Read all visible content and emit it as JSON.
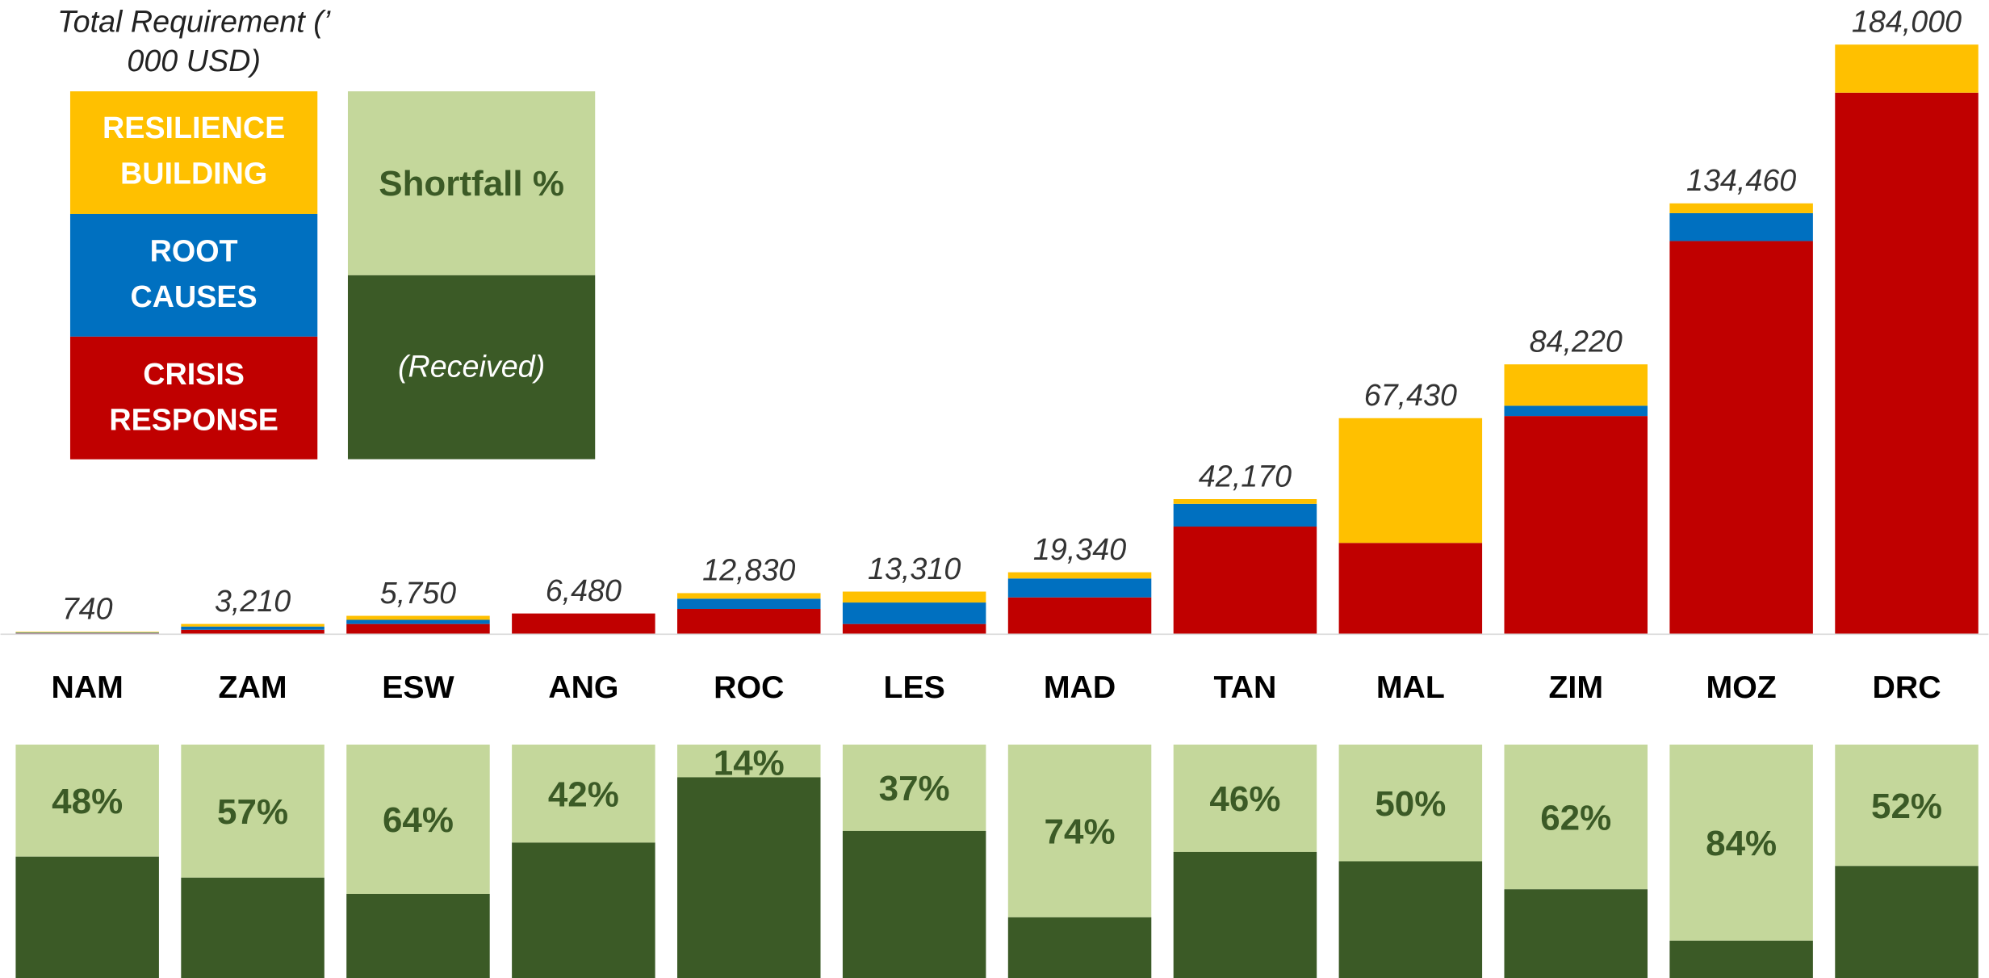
{
  "chart_data": [
    {
      "type": "stacked-bar",
      "title": "Total Requirement (’ 000 USD)",
      "categories": [
        "NAM",
        "ZAM",
        "ESW",
        "ANG",
        "ROC",
        "LES",
        "MAD",
        "TAN",
        "MAL",
        "ZIM",
        "MOZ",
        "DRC"
      ],
      "series": [
        {
          "name": "CRISIS RESPONSE",
          "color": "#c00000",
          "values": [
            300,
            1400,
            3200,
            6480,
            7900,
            3200,
            11500,
            33600,
            28500,
            68100,
            122700,
            169000
          ]
        },
        {
          "name": "ROOT CAUSES",
          "color": "#0070c0",
          "values": [
            200,
            1000,
            1300,
            0,
            3200,
            6700,
            5900,
            7100,
            0,
            3200,
            8700,
            0
          ]
        },
        {
          "name": "RESILIENCE BUILDING",
          "color": "#ffc000",
          "values": [
            240,
            810,
            1250,
            0,
            1730,
            3410,
            1940,
            1470,
            38930,
            12920,
            3060,
            15000
          ]
        }
      ],
      "totals": {
        "values": [
          740,
          3210,
          5750,
          6480,
          12830,
          13310,
          19340,
          42170,
          67430,
          84220,
          134460,
          184000
        ],
        "value_labels": [
          "740",
          "3,210",
          "5,750",
          "6,480",
          "12,830",
          "13,310",
          "19,340",
          "42,170",
          "67,430",
          "84,220",
          "134,460",
          "184,000"
        ]
      },
      "ylim": [
        0,
        190000
      ]
    },
    {
      "type": "shortfall",
      "legend": {
        "shortfall": "Shortfall %",
        "received": "(Received)"
      },
      "shortfall_color": "#c4d79b",
      "received_color": "#3b5a26",
      "values": [
        48,
        57,
        64,
        42,
        14,
        37,
        74,
        46,
        50,
        62,
        84,
        52
      ],
      "value_labels": [
        "48%",
        "57%",
        "64%",
        "42%",
        "14%",
        "37%",
        "74%",
        "46%",
        "50%",
        "62%",
        "84%",
        "52%"
      ],
      "ylim": [
        0,
        100
      ]
    }
  ]
}
